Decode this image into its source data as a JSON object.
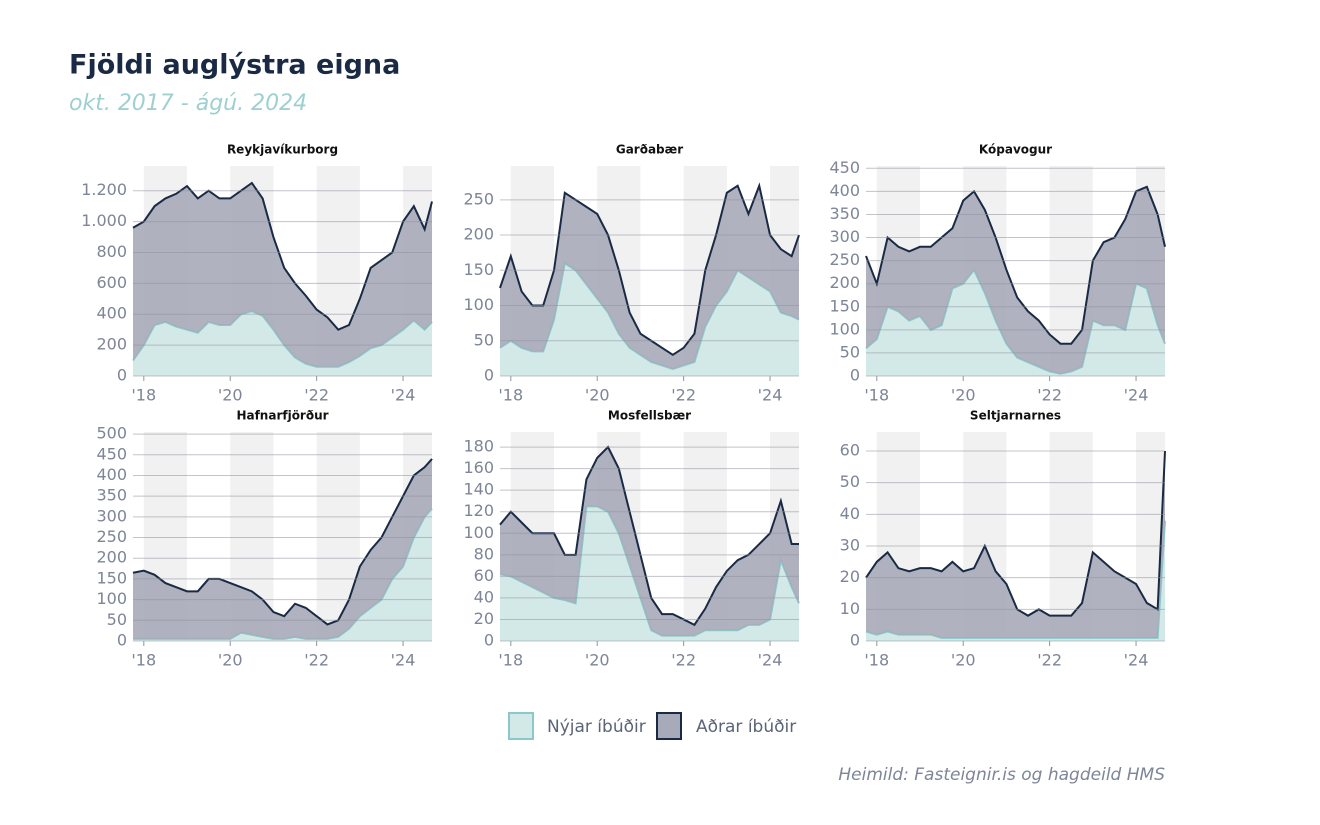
{
  "title": "Fjöldi auglýstra eigna",
  "subtitle": "okt. 2017 - ágú. 2024",
  "source": "Heimild: Fasteignir.is og hagdeild HMS",
  "chart_data": [
    {
      "type": "area",
      "title": "Reykjavíkurborg",
      "x": [
        2017.75,
        2018,
        2018.25,
        2018.5,
        2018.75,
        2019,
        2019.25,
        2019.5,
        2019.75,
        2020,
        2020.25,
        2020.5,
        2020.75,
        2021,
        2021.25,
        2021.5,
        2021.75,
        2022,
        2022.25,
        2022.5,
        2022.75,
        2023,
        2023.25,
        2023.5,
        2023.75,
        2024,
        2024.25,
        2024.5,
        2024.67
      ],
      "series": [
        {
          "name": "Nýjar íbúðir",
          "color": "#d3e9e8",
          "values": [
            100,
            200,
            330,
            350,
            320,
            300,
            280,
            350,
            330,
            330,
            400,
            420,
            390,
            300,
            200,
            120,
            80,
            60,
            60,
            60,
            90,
            130,
            180,
            200,
            250,
            300,
            360,
            300,
            350
          ]
        },
        {
          "name": "Aðrar íbúðir",
          "color": "#a7aab8",
          "values": [
            860,
            800,
            770,
            800,
            860,
            930,
            870,
            850,
            820,
            820,
            800,
            830,
            760,
            600,
            500,
            480,
            440,
            370,
            320,
            240,
            240,
            370,
            520,
            550,
            550,
            700,
            740,
            650,
            780
          ]
        }
      ],
      "xlim": [
        2017.75,
        2024.67
      ],
      "xticks": [
        {
          "value": 2018,
          "label": "'18"
        },
        {
          "value": 2020,
          "label": "'20"
        },
        {
          "value": 2022,
          "label": "'22"
        },
        {
          "value": 2024,
          "label": "'24"
        }
      ],
      "ylim": [
        0,
        1360
      ],
      "yticks": [
        0,
        200,
        400,
        600,
        800,
        {
          "value": 1000,
          "label": "1.000"
        },
        {
          "value": 1200,
          "label": "1.200"
        }
      ]
    },
    {
      "type": "area",
      "title": "Garðabær",
      "x": [
        2017.75,
        2018,
        2018.25,
        2018.5,
        2018.75,
        2019,
        2019.25,
        2019.5,
        2019.75,
        2020,
        2020.25,
        2020.5,
        2020.75,
        2021,
        2021.25,
        2021.5,
        2021.75,
        2022,
        2022.25,
        2022.5,
        2022.75,
        2023,
        2023.25,
        2023.5,
        2023.75,
        2024,
        2024.25,
        2024.5,
        2024.67
      ],
      "series": [
        {
          "name": "Nýjar íbúðir",
          "color": "#d3e9e8",
          "values": [
            40,
            50,
            40,
            35,
            35,
            80,
            160,
            150,
            130,
            110,
            90,
            60,
            40,
            30,
            20,
            15,
            10,
            15,
            20,
            70,
            100,
            120,
            150,
            140,
            130,
            120,
            90,
            85,
            80
          ]
        },
        {
          "name": "Aðrar íbúðir",
          "color": "#a7aab8",
          "values": [
            85,
            120,
            80,
            65,
            65,
            70,
            100,
            100,
            110,
            120,
            110,
            90,
            50,
            30,
            30,
            25,
            20,
            25,
            40,
            80,
            100,
            140,
            120,
            90,
            140,
            80,
            90,
            85,
            120
          ]
        }
      ],
      "xlim": [
        2017.75,
        2024.67
      ],
      "xticks": [
        {
          "value": 2018,
          "label": "'18"
        },
        {
          "value": 2020,
          "label": "'20"
        },
        {
          "value": 2022,
          "label": "'22"
        },
        {
          "value": 2024,
          "label": "'24"
        }
      ],
      "ylim": [
        0,
        298
      ],
      "yticks": [
        0,
        50,
        100,
        150,
        200,
        250
      ]
    },
    {
      "type": "area",
      "title": "Kópavogur",
      "x": [
        2017.75,
        2018,
        2018.25,
        2018.5,
        2018.75,
        2019,
        2019.25,
        2019.5,
        2019.75,
        2020,
        2020.25,
        2020.5,
        2020.75,
        2021,
        2021.25,
        2021.5,
        2021.75,
        2022,
        2022.25,
        2022.5,
        2022.75,
        2023,
        2023.25,
        2023.5,
        2023.75,
        2024,
        2024.25,
        2024.5,
        2024.67
      ],
      "series": [
        {
          "name": "Nýjar íbúðir",
          "color": "#d3e9e8",
          "values": [
            60,
            80,
            150,
            140,
            120,
            130,
            100,
            110,
            190,
            200,
            230,
            180,
            120,
            70,
            40,
            30,
            20,
            10,
            5,
            10,
            20,
            120,
            110,
            110,
            100,
            200,
            190,
            110,
            70
          ]
        },
        {
          "name": "Aðrar íbúðir",
          "color": "#a7aab8",
          "values": [
            200,
            120,
            150,
            140,
            150,
            150,
            180,
            190,
            130,
            180,
            170,
            180,
            180,
            160,
            130,
            110,
            100,
            80,
            65,
            60,
            80,
            130,
            180,
            190,
            240,
            200,
            220,
            240,
            210
          ]
        }
      ],
      "xlim": [
        2017.75,
        2024.67
      ],
      "xticks": [
        {
          "value": 2018,
          "label": "'18"
        },
        {
          "value": 2020,
          "label": "'20"
        },
        {
          "value": 2022,
          "label": "'22"
        },
        {
          "value": 2024,
          "label": "'24"
        }
      ],
      "ylim": [
        0,
        455
      ],
      "yticks": [
        0,
        50,
        100,
        150,
        200,
        250,
        300,
        350,
        400,
        450
      ]
    },
    {
      "type": "area",
      "title": "Hafnarfjörður",
      "x": [
        2017.75,
        2018,
        2018.25,
        2018.5,
        2018.75,
        2019,
        2019.25,
        2019.5,
        2019.75,
        2020,
        2020.25,
        2020.5,
        2020.75,
        2021,
        2021.25,
        2021.5,
        2021.75,
        2022,
        2022.25,
        2022.5,
        2022.75,
        2023,
        2023.25,
        2023.5,
        2023.75,
        2024,
        2024.25,
        2024.5,
        2024.67
      ],
      "series": [
        {
          "name": "Nýjar íbúðir",
          "color": "#d3e9e8",
          "values": [
            5,
            5,
            5,
            5,
            5,
            5,
            5,
            5,
            5,
            5,
            20,
            15,
            10,
            5,
            5,
            10,
            5,
            5,
            5,
            10,
            30,
            60,
            80,
            100,
            150,
            180,
            250,
            300,
            320
          ]
        },
        {
          "name": "Aðrar íbúðir",
          "color": "#a7aab8",
          "values": [
            160,
            165,
            155,
            135,
            125,
            115,
            115,
            145,
            145,
            135,
            110,
            105,
            90,
            65,
            55,
            80,
            75,
            55,
            35,
            40,
            70,
            120,
            140,
            150,
            150,
            170,
            150,
            120,
            120
          ]
        }
      ],
      "xlim": [
        2017.75,
        2024.67
      ],
      "xticks": [
        {
          "value": 2018,
          "label": "'18"
        },
        {
          "value": 2020,
          "label": "'20"
        },
        {
          "value": 2022,
          "label": "'22"
        },
        {
          "value": 2024,
          "label": "'24"
        }
      ],
      "ylim": [
        0,
        505
      ],
      "yticks": [
        0,
        50,
        100,
        150,
        200,
        250,
        300,
        350,
        400,
        450,
        500
      ]
    },
    {
      "type": "area",
      "title": "Mosfellsbær",
      "x": [
        2017.75,
        2018,
        2018.25,
        2018.5,
        2018.75,
        2019,
        2019.25,
        2019.5,
        2019.75,
        2020,
        2020.25,
        2020.5,
        2020.75,
        2021,
        2021.25,
        2021.5,
        2021.75,
        2022,
        2022.25,
        2022.5,
        2022.75,
        2023,
        2023.25,
        2023.5,
        2023.75,
        2024,
        2024.25,
        2024.5,
        2024.67
      ],
      "series": [
        {
          "name": "Nýjar íbúðir",
          "color": "#d3e9e8",
          "values": [
            62,
            60,
            55,
            50,
            45,
            40,
            38,
            35,
            125,
            125,
            120,
            100,
            70,
            40,
            10,
            5,
            5,
            5,
            5,
            10,
            10,
            10,
            10,
            15,
            15,
            20,
            75,
            50,
            35
          ]
        },
        {
          "name": "Aðrar íbúðir",
          "color": "#a7aab8",
          "values": [
            46,
            60,
            55,
            50,
            55,
            60,
            42,
            45,
            25,
            45,
            60,
            60,
            50,
            40,
            30,
            20,
            20,
            15,
            10,
            20,
            40,
            55,
            65,
            65,
            75,
            80,
            55,
            40,
            55
          ]
        }
      ],
      "xlim": [
        2017.75,
        2024.67
      ],
      "xticks": [
        {
          "value": 2018,
          "label": "'18"
        },
        {
          "value": 2020,
          "label": "'20"
        },
        {
          "value": 2022,
          "label": "'22"
        },
        {
          "value": 2024,
          "label": "'24"
        }
      ],
      "ylim": [
        0,
        194
      ],
      "yticks": [
        0,
        20,
        40,
        60,
        80,
        100,
        120,
        140,
        160,
        180
      ]
    },
    {
      "type": "area",
      "title": "Seltjarnarnes",
      "x": [
        2017.75,
        2018,
        2018.25,
        2018.5,
        2018.75,
        2019,
        2019.25,
        2019.5,
        2019.75,
        2020,
        2020.25,
        2020.5,
        2020.75,
        2021,
        2021.25,
        2021.5,
        2021.75,
        2022,
        2022.25,
        2022.5,
        2022.75,
        2023,
        2023.25,
        2023.5,
        2023.75,
        2024,
        2024.25,
        2024.5,
        2024.67
      ],
      "series": [
        {
          "name": "Nýjar íbúðir",
          "color": "#d3e9e8",
          "values": [
            3,
            2,
            3,
            2,
            2,
            2,
            2,
            1,
            1,
            1,
            1,
            1,
            1,
            1,
            1,
            1,
            1,
            1,
            1,
            1,
            1,
            1,
            1,
            1,
            1,
            1,
            1,
            1,
            38
          ]
        },
        {
          "name": "Aðrar íbúðir",
          "color": "#a7aab8",
          "values": [
            17,
            23,
            25,
            21,
            20,
            21,
            21,
            21,
            24,
            21,
            22,
            29,
            21,
            17,
            9,
            7,
            9,
            7,
            7,
            7,
            11,
            27,
            24,
            21,
            19,
            17,
            11,
            9,
            22
          ]
        }
      ],
      "xlim": [
        2017.75,
        2024.67
      ],
      "xticks": [
        {
          "value": 2018,
          "label": "'18"
        },
        {
          "value": 2020,
          "label": "'20"
        },
        {
          "value": 2022,
          "label": "'22"
        },
        {
          "value": 2024,
          "label": "'24"
        }
      ],
      "ylim": [
        0,
        66
      ],
      "yticks": [
        0,
        10,
        20,
        30,
        40,
        50,
        60
      ]
    }
  ]
}
